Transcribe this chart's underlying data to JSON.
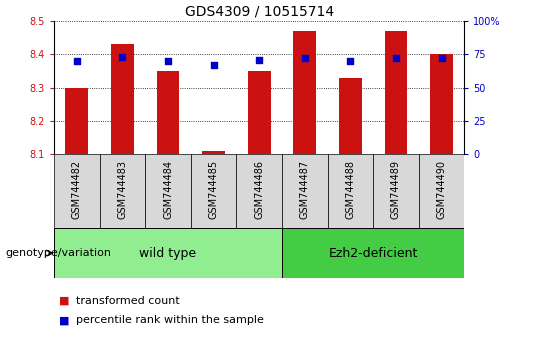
{
  "title": "GDS4309 / 10515714",
  "samples": [
    "GSM744482",
    "GSM744483",
    "GSM744484",
    "GSM744485",
    "GSM744486",
    "GSM744487",
    "GSM744488",
    "GSM744489",
    "GSM744490"
  ],
  "transformed_count": [
    8.3,
    8.43,
    8.35,
    8.11,
    8.35,
    8.47,
    8.33,
    8.47,
    8.4
  ],
  "percentile_rank": [
    70,
    73,
    70,
    67,
    71,
    72,
    70,
    72,
    72
  ],
  "ylim_left": [
    8.1,
    8.5
  ],
  "ylim_right": [
    0,
    100
  ],
  "yticks_left": [
    8.1,
    8.2,
    8.3,
    8.4,
    8.5
  ],
  "yticks_right": [
    0,
    25,
    50,
    75,
    100
  ],
  "groups": [
    {
      "label": "wild type",
      "indices": [
        0,
        1,
        2,
        3,
        4
      ],
      "color": "#90ee90"
    },
    {
      "label": "Ezh2-deficient",
      "indices": [
        5,
        6,
        7,
        8
      ],
      "color": "#44cc44"
    }
  ],
  "bar_color": "#cc1111",
  "dot_color": "#0000cc",
  "bar_width": 0.5,
  "dot_size": 25,
  "group_label": "genotype/variation",
  "legend_items": [
    {
      "label": "transformed count",
      "color": "#cc1111"
    },
    {
      "label": "percentile rank within the sample",
      "color": "#0000cc"
    }
  ],
  "left_tick_color": "#cc1111",
  "right_tick_color": "#0000cc",
  "title_fontsize": 10,
  "tick_fontsize": 7,
  "sample_fontsize": 7,
  "group_fontsize": 9,
  "legend_fontsize": 8,
  "group_label_fontsize": 8,
  "bg_gray": "#d8d8d8",
  "bg_white": "#ffffff"
}
